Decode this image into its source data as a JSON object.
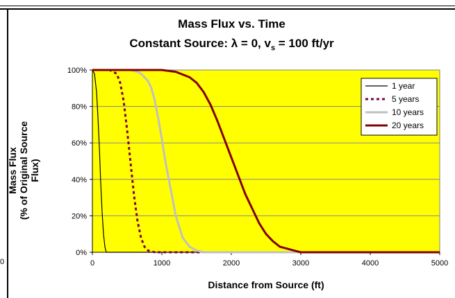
{
  "chart_data": {
    "type": "line",
    "title": "Mass Flux vs. Time",
    "subtitle_parts": {
      "prefix": "Constant Source: λ = 0, v",
      "subscript": "s",
      "suffix": " = 100 ft/yr"
    },
    "xlabel": "Distance from Source (ft)",
    "ylabel_lines": [
      "Mass Flux",
      "(% of Original Source",
      "Flux)"
    ],
    "xlim": [
      0,
      5000
    ],
    "ylim": [
      0,
      100
    ],
    "x_ticks": [
      0,
      1000,
      2000,
      3000,
      4000,
      5000
    ],
    "x_tick_labels": [
      "0",
      "1000",
      "2000",
      "3000",
      "4000",
      "5000"
    ],
    "y_ticks": [
      0,
      20,
      40,
      60,
      80,
      100
    ],
    "y_tick_labels": [
      "0%",
      "20%",
      "40%",
      "60%",
      "80%",
      "100%"
    ],
    "grid": "horizontal",
    "legend_position": "top-right",
    "colors": {
      "plot_background": "#ffff00",
      "grid": "#888888"
    },
    "series": [
      {
        "name": "1 year",
        "color": "#000000",
        "style": "solid",
        "x": [
          0,
          30,
          60,
          80,
          100,
          120,
          140,
          160,
          180,
          200,
          5000
        ],
        "y": [
          100,
          98,
          88,
          74,
          58,
          38,
          22,
          10,
          3,
          0,
          0
        ]
      },
      {
        "name": "5 years",
        "color": "#800040",
        "style": "dashed",
        "x": [
          0,
          250,
          350,
          400,
          450,
          500,
          550,
          600,
          650,
          700,
          750,
          800,
          900,
          5000
        ],
        "y": [
          100,
          100,
          98,
          93,
          83,
          67,
          49,
          31,
          17,
          8,
          3,
          1,
          0,
          0
        ]
      },
      {
        "name": "10 years",
        "color": "#c0c0c0",
        "style": "solid",
        "x": [
          0,
          550,
          650,
          700,
          800,
          850,
          900,
          950,
          1000,
          1050,
          1100,
          1150,
          1200,
          1300,
          1400,
          1500,
          1600,
          5000
        ],
        "y": [
          100,
          100,
          99,
          98,
          94,
          90,
          83,
          73,
          62,
          50,
          40,
          30,
          20,
          8,
          3,
          1,
          0,
          0
        ]
      },
      {
        "name": "20 years",
        "color": "#800000",
        "style": "solid",
        "x": [
          0,
          1000,
          1200,
          1400,
          1500,
          1600,
          1700,
          1800,
          1900,
          2000,
          2100,
          2200,
          2300,
          2400,
          2500,
          2600,
          2700,
          2800,
          2900,
          3000,
          5000
        ],
        "y": [
          100,
          100,
          99,
          96,
          93,
          88,
          81,
          72,
          62,
          52,
          42,
          32,
          24,
          16,
          10,
          6,
          3,
          2,
          1,
          0,
          0
        ]
      }
    ]
  },
  "left_edge_label": "0"
}
